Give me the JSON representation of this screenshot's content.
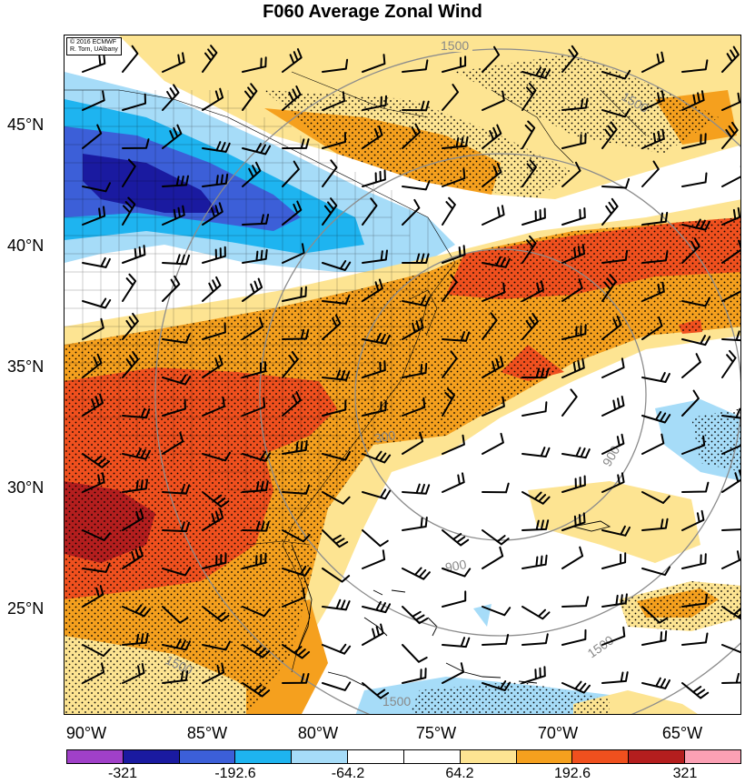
{
  "title": "F060 Average Zonal Wind",
  "copyright": [
    "© 2016 ECMWF",
    "R. Torn, UAlbany"
  ],
  "lat_labels": [
    "45°N",
    "40°N",
    "35°N",
    "30°N",
    "25°N"
  ],
  "lon_labels": [
    "90°W",
    "85°W",
    "80°W",
    "75°W",
    "70°W",
    "65°W"
  ],
  "colorbar": {
    "colors": [
      "#a040c8",
      "#1a1aa0",
      "#3c5fd8",
      "#1eb4f0",
      "#a6dcf8",
      "#ffffff",
      "#ffffff",
      "#fde492",
      "#f5a01e",
      "#f0501e",
      "#b41e1e",
      "#fba0b4"
    ],
    "tick_labels": [
      "-321",
      "-192.6",
      "-64.2",
      "64.2",
      "192.6",
      "321"
    ]
  },
  "contour_labels": [
    "1500",
    "1500",
    "300",
    "900",
    "900",
    "1500",
    "1500",
    "1500"
  ],
  "layers": [
    "zonal-wind-shading",
    "significance-stippling",
    "wind-barbs",
    "state-county-borders",
    "distance-contours"
  ]
}
